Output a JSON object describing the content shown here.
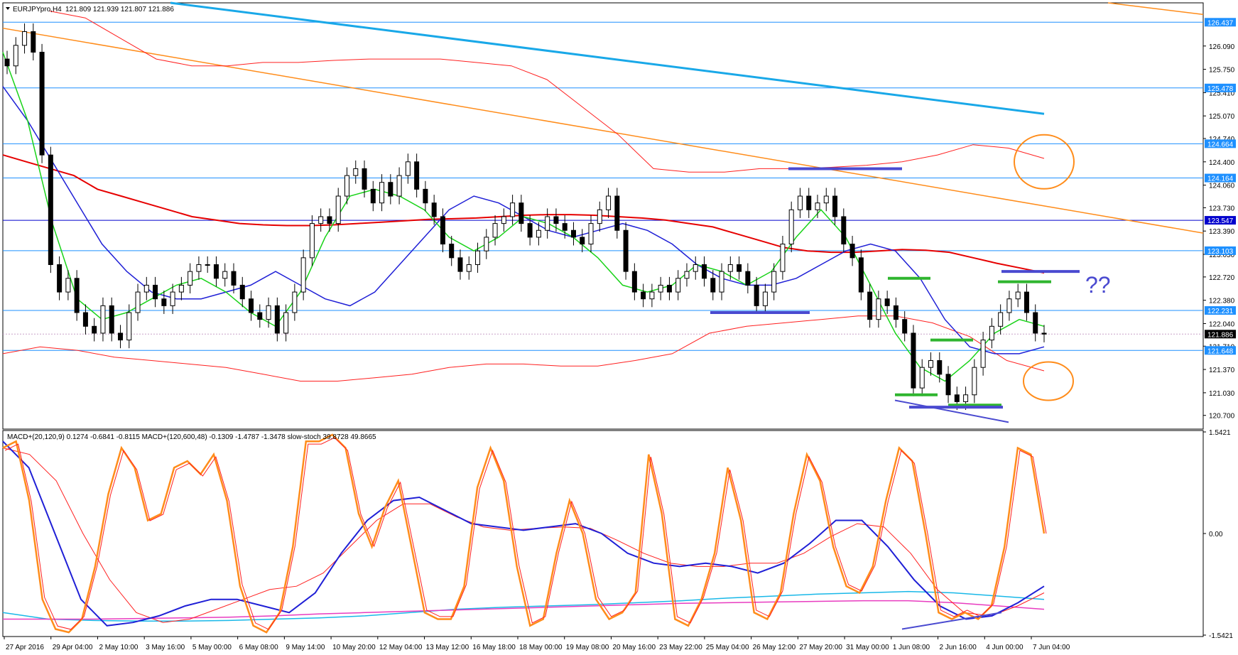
{
  "chart_data": {
    "type": "candlestick",
    "title": "EURJPYpro,H4",
    "ohlc_header": "121.809 121.939 121.807 121.886",
    "price_axis": {
      "ylim": [
        120.5,
        126.72
      ],
      "ticks": [
        "126.090",
        "125.750",
        "125.410",
        "125.070",
        "124.740",
        "124.400",
        "124.060",
        "123.730",
        "123.390",
        "123.050",
        "122.720",
        "122.380",
        "122.040",
        "121.710",
        "121.370",
        "121.030",
        "120.700"
      ]
    },
    "hlines": [
      {
        "value": 126.437,
        "label": "126.437",
        "color": "#1e90ff"
      },
      {
        "value": 125.478,
        "label": "125.478",
        "color": "#1e90ff"
      },
      {
        "value": 124.664,
        "label": "124.664",
        "color": "#1e90ff"
      },
      {
        "value": 124.164,
        "label": "124.164",
        "color": "#1e90ff"
      },
      {
        "value": 123.547,
        "label": "123.547",
        "color": "#0000cd"
      },
      {
        "value": 123.103,
        "label": "123.103",
        "color": "#1e90ff"
      },
      {
        "value": 122.231,
        "label": "122.231",
        "color": "#1e90ff"
      },
      {
        "value": 121.648,
        "label": "121.648",
        "color": "#1e90ff"
      }
    ],
    "current_price": {
      "value": 121.886,
      "label": "121.886"
    },
    "candles_close": [
      125.8,
      126.1,
      126.3,
      126.0,
      124.5,
      122.9,
      122.5,
      122.7,
      122.2,
      122.0,
      121.9,
      122.3,
      121.9,
      121.8,
      122.2,
      122.5,
      122.6,
      122.4,
      122.3,
      122.5,
      122.6,
      122.8,
      122.9,
      122.9,
      122.7,
      122.8,
      122.6,
      122.4,
      122.2,
      122.1,
      122.3,
      121.9,
      122.2,
      122.5,
      123.0,
      123.5,
      123.6,
      123.5,
      123.9,
      124.2,
      124.3,
      124.0,
      123.8,
      124.1,
      123.9,
      124.2,
      124.4,
      124.0,
      123.8,
      123.6,
      123.2,
      123.0,
      122.8,
      122.9,
      123.1,
      123.3,
      123.5,
      123.6,
      123.8,
      123.5,
      123.3,
      123.4,
      123.6,
      123.5,
      123.4,
      123.3,
      123.2,
      123.5,
      123.7,
      123.9,
      123.4,
      122.8,
      122.5,
      122.4,
      122.5,
      122.6,
      122.5,
      122.7,
      122.8,
      122.9,
      122.7,
      122.5,
      122.8,
      122.9,
      122.8,
      122.6,
      122.3,
      122.5,
      122.8,
      123.2,
      123.7,
      123.9,
      123.7,
      123.8,
      123.9,
      123.6,
      123.2,
      123.0,
      122.5,
      122.1,
      122.4,
      122.3,
      122.1,
      121.9,
      121.1,
      121.4,
      121.5,
      121.3,
      121.0,
      120.9,
      121.0,
      121.4,
      121.8,
      122.0,
      122.2,
      122.4,
      122.5,
      122.2,
      121.9,
      121.886
    ],
    "ma_red": [
      124.5,
      124.4,
      124.3,
      124.2,
      124.0,
      123.9,
      123.8,
      123.7,
      123.6,
      123.55,
      123.5,
      123.48,
      123.47,
      123.47,
      123.48,
      123.5,
      123.52,
      123.54,
      123.56,
      123.57,
      123.58,
      123.6,
      123.62,
      123.63,
      123.63,
      123.62,
      123.6,
      123.58,
      123.55,
      123.5,
      123.45,
      123.35,
      123.25,
      123.15,
      123.1,
      123.08,
      123.08,
      123.1,
      123.12,
      123.11,
      123.08,
      123.0,
      122.92,
      122.85,
      122.78
    ],
    "ma_blue": [
      125.5,
      125.0,
      124.4,
      123.8,
      123.2,
      122.8,
      122.5,
      122.4,
      122.4,
      122.5,
      122.6,
      122.8,
      122.6,
      122.4,
      122.3,
      122.5,
      122.9,
      123.3,
      123.7,
      123.9,
      123.8,
      123.6,
      123.4,
      123.3,
      123.4,
      123.5,
      123.4,
      123.2,
      122.9,
      122.7,
      122.6,
      122.6,
      122.7,
      122.9,
      123.1,
      123.2,
      123.1,
      122.7,
      122.1,
      121.7,
      121.6,
      121.6,
      121.7
    ],
    "ma_green": [
      126.0,
      125.0,
      123.5,
      122.4,
      122.1,
      122.2,
      122.4,
      122.6,
      122.7,
      122.5,
      122.2,
      122.0,
      122.5,
      123.3,
      123.9,
      124.0,
      123.9,
      123.7,
      123.3,
      123.1,
      123.3,
      123.6,
      123.5,
      123.3,
      123.0,
      122.6,
      122.5,
      122.6,
      122.9,
      122.8,
      122.6,
      122.8,
      123.3,
      123.7,
      123.3,
      122.6,
      121.9,
      121.4,
      121.2,
      121.5,
      121.9,
      122.1,
      122.0
    ],
    "bb_upper": [
      126.6,
      126.5,
      126.2,
      125.9,
      125.8,
      125.8,
      125.85,
      125.85,
      125.88,
      125.9,
      125.9,
      125.9,
      125.85,
      125.8,
      125.6,
      125.2,
      124.8,
      124.3,
      124.25,
      124.25,
      124.3,
      124.3,
      124.32,
      124.35,
      124.4,
      124.5,
      124.65,
      124.6,
      124.45
    ],
    "bb_lower": [
      121.6,
      121.7,
      121.65,
      121.55,
      121.5,
      121.45,
      121.4,
      121.3,
      121.2,
      121.2,
      121.25,
      121.3,
      121.4,
      121.45,
      121.45,
      121.42,
      121.42,
      121.5,
      121.6,
      121.9,
      122.0,
      122.05,
      122.1,
      122.15,
      122.15,
      122.05,
      121.85,
      121.5,
      121.35
    ],
    "orange_trend": {
      "from": 126.35,
      "to": 123.36
    },
    "cyan_trend": {
      "from": 126.72,
      "to": 125.1
    },
    "orange_trend_top": {
      "from": 126.72,
      "to": 126.55
    },
    "annotation_text": "??",
    "x_axis_labels": [
      "27 Apr 2016",
      "29 Apr 04:00",
      "2 May 10:00",
      "3 May 16:00",
      "5 May 00:00",
      "6 May 08:00",
      "9 May 14:00",
      "10 May 20:00",
      "12 May 04:00",
      "13 May 12:00",
      "16 May 18:00",
      "18 May 00:00",
      "19 May 08:00",
      "20 May 16:00",
      "23 May 22:00",
      "25 May 04:00",
      "26 May 12:00",
      "27 May 20:00",
      "31 May 00:00",
      "1 Jun 08:00",
      "2 Jun 16:00",
      "4 Jun 00:00",
      "7 Jun 04:00"
    ],
    "oscillator": {
      "header": "MACD+(20,120,9) 0.1274 -0.6841 -0.8115  MACD+(120,600,48) -0.1309 -1.4787 -1.3478  slow-stoch 39.8728 49.8665",
      "ylim": [
        -1.5421,
        1.5421
      ],
      "ticks": [
        "1.5421",
        "0.00",
        "-1.5421"
      ],
      "stoch_orange": [
        1.3,
        1.4,
        0.5,
        -1.0,
        -1.45,
        -1.5,
        -1.3,
        -0.5,
        0.6,
        1.3,
        1.0,
        0.2,
        0.3,
        1.0,
        1.1,
        0.9,
        1.2,
        0.5,
        -0.8,
        -1.4,
        -1.5,
        -1.2,
        -0.2,
        1.4,
        1.4,
        1.5,
        1.3,
        0.3,
        -0.2,
        0.4,
        0.8,
        -0.2,
        -1.2,
        -1.3,
        -1.3,
        -0.8,
        0.7,
        1.3,
        0.8,
        -0.5,
        -1.4,
        -1.3,
        -0.3,
        0.5,
        0.0,
        -1.0,
        -1.3,
        -1.2,
        -0.9,
        1.2,
        0.3,
        -1.3,
        -1.4,
        -1.0,
        -0.3,
        1.0,
        0.2,
        -1.2,
        -1.3,
        -0.9,
        0.3,
        1.2,
        0.8,
        -0.2,
        -0.8,
        -0.9,
        -0.5,
        0.5,
        1.3,
        1.1,
        0.0,
        -1.2,
        -1.3,
        -1.2,
        -1.3,
        -1.1,
        -0.2,
        1.3,
        1.2,
        0.0
      ],
      "macd_blue": [
        1.4,
        1.0,
        0.0,
        -1.0,
        -1.4,
        -1.35,
        -1.25,
        -1.1,
        -1.0,
        -1.0,
        -1.1,
        -1.2,
        -0.9,
        -0.3,
        0.2,
        0.5,
        0.55,
        0.35,
        0.15,
        0.1,
        0.05,
        0.1,
        0.15,
        0.0,
        -0.3,
        -0.45,
        -0.5,
        -0.45,
        -0.5,
        -0.6,
        -0.45,
        -0.15,
        0.2,
        0.2,
        -0.2,
        -0.7,
        -1.1,
        -1.3,
        -1.25,
        -1.05,
        -0.8
      ],
      "signal_red": [
        1.3,
        1.2,
        0.8,
        0.0,
        -0.7,
        -1.2,
        -1.35,
        -1.3,
        -1.15,
        -1.0,
        -0.85,
        -0.8,
        -0.6,
        -0.2,
        0.2,
        0.45,
        0.45,
        0.25,
        0.1,
        0.05,
        0.08,
        0.1,
        0.08,
        -0.1,
        -0.3,
        -0.45,
        -0.5,
        -0.5,
        -0.45,
        -0.45,
        -0.3,
        -0.05,
        0.15,
        0.1,
        -0.3,
        -0.85,
        -1.2,
        -1.25,
        -1.1,
        -0.9
      ],
      "long_cyan": [
        -1.2,
        -1.3,
        -1.32,
        -1.33,
        -1.33,
        -1.32,
        -1.3,
        -1.28,
        -1.25,
        -1.2,
        -1.15,
        -1.12,
        -1.1,
        -1.08,
        -1.05,
        -1.02,
        -0.98,
        -0.95,
        -0.92,
        -0.9,
        -0.88,
        -0.9,
        -0.95,
        -1.0
      ],
      "long_magenta": [
        -1.3,
        -1.3,
        -1.3,
        -1.29,
        -1.28,
        -1.27,
        -1.25,
        -1.22,
        -1.2,
        -1.18,
        -1.16,
        -1.14,
        -1.12,
        -1.1,
        -1.08,
        -1.06,
        -1.05,
        -1.04,
        -1.03,
        -1.02,
        -1.02,
        -1.05,
        -1.1,
        -1.15
      ]
    }
  },
  "colors": {
    "bull": "#ffffff",
    "bear": "#000000",
    "ma_red": "#e60000",
    "ma_blue": "#1f1fd6",
    "ma_green": "#19d319",
    "bb": "#ff2020",
    "orange": "#ff8c1a",
    "cyan": "#19a8e8",
    "hline": "#1e90ff",
    "hline_dark": "#0000cd",
    "annotation_blue": "#4a4ad0",
    "annotation_green": "#2fb52f",
    "annotation_orange": "#ff8c1a",
    "stoch": "#ff8c1a",
    "macd": "#1f1fd6",
    "signal": "#ff2020",
    "long_cyan": "#19b8e8",
    "long_magenta": "#e83cc0"
  }
}
